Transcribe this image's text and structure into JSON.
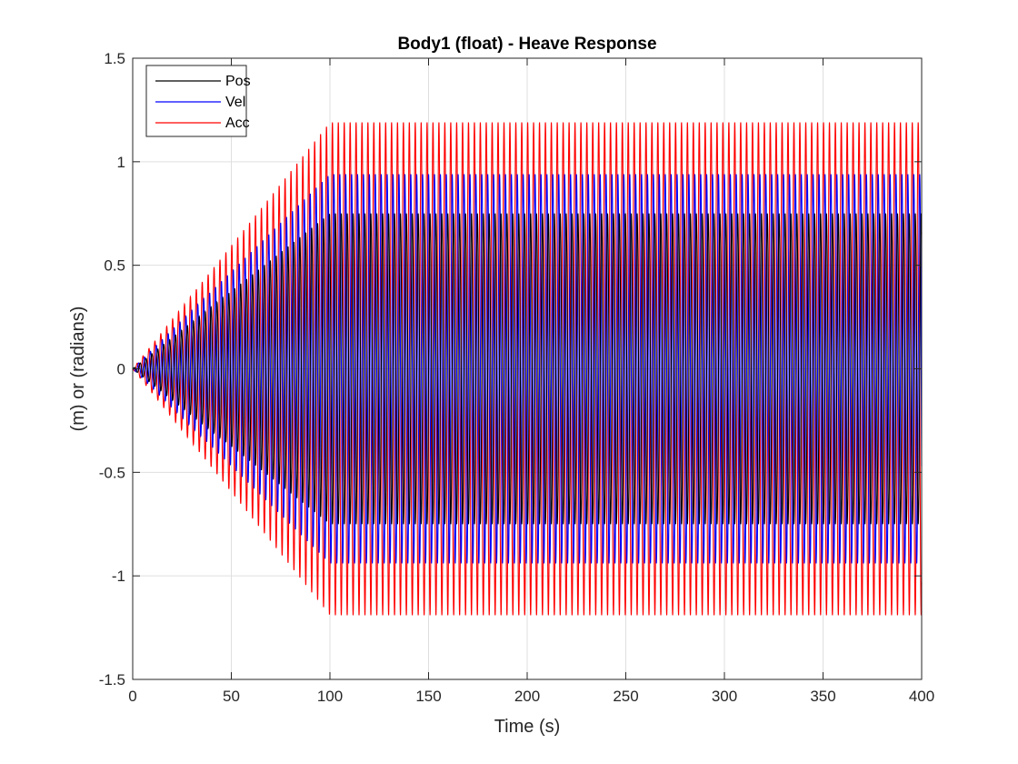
{
  "chart_data": {
    "type": "line",
    "title": "Body1 (float) - Heave Response",
    "xlabel": "Time (s)",
    "ylabel": "(m) or (radians)",
    "xlim": [
      0,
      400
    ],
    "ylim": [
      -1.5,
      1.5
    ],
    "xticks": [
      0,
      50,
      100,
      150,
      200,
      250,
      300,
      350,
      400
    ],
    "xtick_labels": [
      "0",
      "50",
      "100",
      "150",
      "200",
      "250",
      "300",
      "350",
      "400"
    ],
    "yticks": [
      -1.5,
      -1,
      -0.5,
      0,
      0.5,
      1,
      1.5
    ],
    "ytick_labels": [
      "-1.5",
      "-1",
      "-0.5",
      "0",
      "0.5",
      "1",
      "1.5"
    ],
    "grid": true,
    "legend_position": "top-left",
    "wave_period_s": 3.0,
    "ramp_end_s": 100,
    "series": [
      {
        "name": "Pos",
        "color": "#000000",
        "steady_amplitude": 0.75,
        "phase_deg": 0
      },
      {
        "name": "Vel",
        "color": "#0000ff",
        "steady_amplitude": 0.94,
        "phase_deg": 90
      },
      {
        "name": "Acc",
        "color": "#ff0000",
        "steady_amplitude": 1.19,
        "phase_deg": 180
      }
    ]
  }
}
